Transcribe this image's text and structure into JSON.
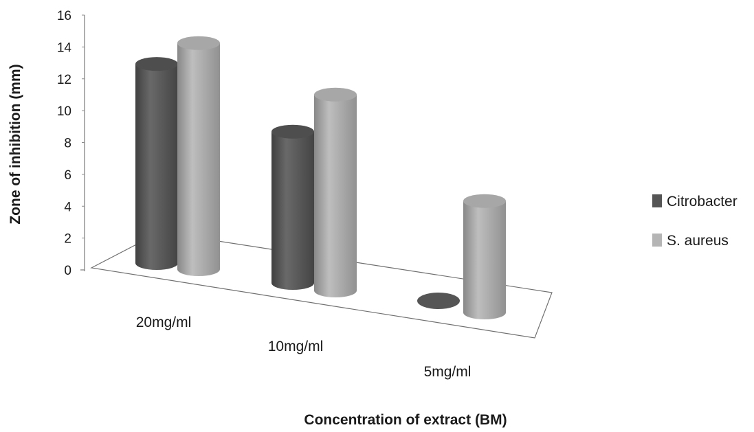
{
  "chart_data": {
    "type": "bar",
    "style": "3d-cylinder",
    "title": "",
    "categories": [
      "20mg/ml",
      "10mg/ml",
      "5mg/ml"
    ],
    "series": [
      {
        "name": "Citrobacter",
        "values": [
          12.5,
          9.5,
          0
        ],
        "color": "#555555"
      },
      {
        "name": "S. aureus",
        "values": [
          14.2,
          12.3,
          7
        ],
        "color": "#b5b5b5"
      }
    ],
    "xlabel": "Concentration of extract  (BM)",
    "ylabel": "Zone of inhibition  (mm)",
    "ylim": [
      0,
      16
    ],
    "yticks": [
      "0",
      "2",
      "4",
      "6",
      "8",
      "10",
      "12",
      "14",
      "16"
    ],
    "legend": "right",
    "grid": false
  }
}
